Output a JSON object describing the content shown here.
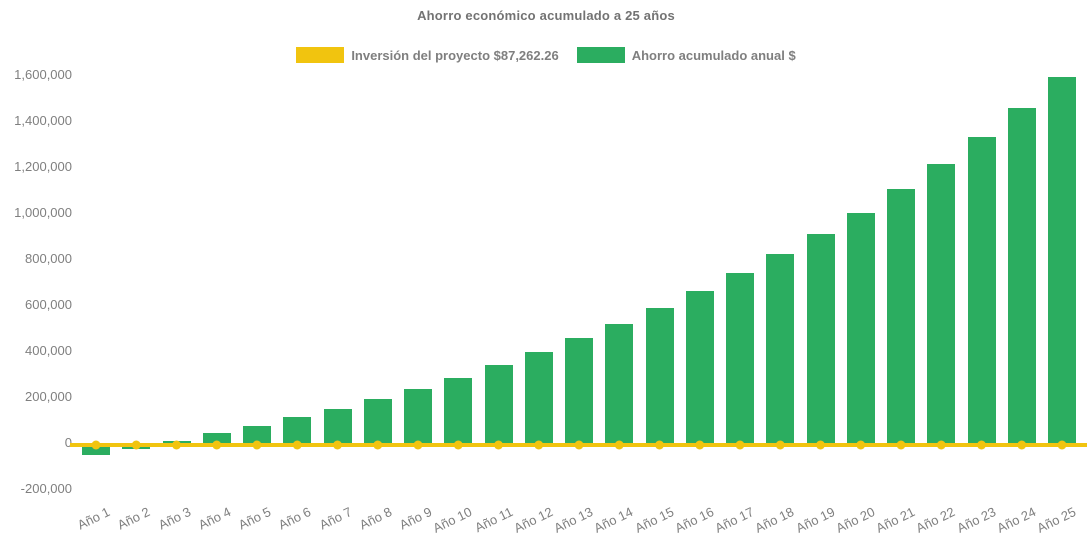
{
  "title": "Ahorro económico acumulado a 25 años",
  "colors": {
    "investment_yellow": "#F1C40F",
    "savings_green": "#2BAD60",
    "text_gray": "#7F7F7F",
    "title_gray": "#737373"
  },
  "legend": [
    {
      "label": "Inversión del proyecto $87,262.26",
      "color": "#F1C40F",
      "shape": "rect"
    },
    {
      "label": "Ahorro acumulado anual $",
      "color": "#2BAD60",
      "shape": "rect"
    }
  ],
  "chart_data": {
    "type": "bar",
    "title": "Ahorro económico acumulado a 25 años",
    "categories": [
      "Año 1",
      "Año 2",
      "Año 3",
      "Año 4",
      "Año 5",
      "Año 6",
      "Año 7",
      "Año 8",
      "Año 9",
      "Año 10",
      "Año 11",
      "Año 12",
      "Año 13",
      "Año 14",
      "Año 15",
      "Año 16",
      "Año 17",
      "Año 18",
      "Año 19",
      "Año 20",
      "Año 21",
      "Año 22",
      "Año 23",
      "Año 24",
      "Año 25"
    ],
    "series": [
      {
        "name": "Inversión del proyecto $87,262.26",
        "type": "line",
        "color": "#F1C40F",
        "marker": "circle",
        "values": [
          0,
          0,
          0,
          0,
          0,
          0,
          0,
          0,
          0,
          0,
          0,
          0,
          0,
          0,
          0,
          0,
          0,
          0,
          0,
          0,
          0,
          0,
          0,
          0,
          0
        ]
      },
      {
        "name": "Ahorro acumulado anual $",
        "type": "bar",
        "color": "#2BAD60",
        "values": [
          -50000,
          -25000,
          9000,
          44000,
          74000,
          113000,
          149000,
          191000,
          236000,
          284000,
          341000,
          394000,
          457000,
          516000,
          586000,
          661000,
          738000,
          822000,
          909000,
          1001000,
          1103000,
          1212000,
          1329000,
          1456000,
          1590000
        ]
      }
    ],
    "xlabel": "",
    "ylabel": "",
    "ylim": [
      -200000,
      1600000
    ],
    "ytick_step": 200000,
    "ytick_labels": [
      "-200,000",
      "0",
      "200,000",
      "400,000",
      "600,000",
      "800,000",
      "1,000,000",
      "1,200,000",
      "1,400,000",
      "1,600,000"
    ],
    "grid": false,
    "legend_position": "top-center",
    "background": "#ffffff"
  }
}
